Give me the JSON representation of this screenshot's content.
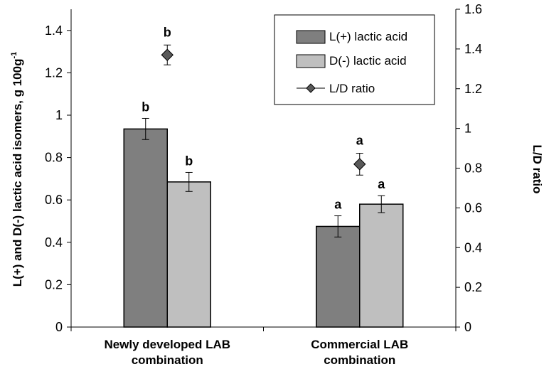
{
  "chart_data": {
    "type": "bar",
    "categories": [
      [
        "Newly developed LAB",
        "combination"
      ],
      [
        "Commercial LAB",
        "combination"
      ]
    ],
    "series": [
      {
        "name": "L(+) lactic acid",
        "axis": "left",
        "values": [
          0.935,
          0.475
        ],
        "errors": [
          0.05,
          0.05
        ],
        "letters": [
          "b",
          "a"
        ],
        "color": "#7f7f7f"
      },
      {
        "name": "D(-) lactic acid",
        "axis": "left",
        "values": [
          0.685,
          0.58
        ],
        "errors": [
          0.045,
          0.04
        ],
        "letters": [
          "b",
          "a"
        ],
        "color": "#bfbfbf"
      }
    ],
    "ratio_series": {
      "name": "L/D ratio",
      "axis": "right",
      "values": [
        1.37,
        0.82
      ],
      "errors": [
        0.05,
        0.055
      ],
      "letters": [
        "b",
        "a"
      ],
      "color": "#595959"
    },
    "ylabel": "L(+) and D(-) lactic acid isomers, g 100g",
    "ylabel_superscript": "-1",
    "y2label": "L/D ratio",
    "ylim": [
      0,
      1.5
    ],
    "y2lim": [
      0,
      1.6
    ],
    "yticks": [
      "0",
      "0.2",
      "0.4",
      "0.6",
      "0.8",
      "1",
      "1.2",
      "1.4"
    ],
    "y2ticks": [
      "0",
      "0.2",
      "0.4",
      "0.6",
      "0.8",
      "1",
      "1.2",
      "1.4",
      "1.6"
    ],
    "legend_position": "top-right",
    "grid": false
  }
}
